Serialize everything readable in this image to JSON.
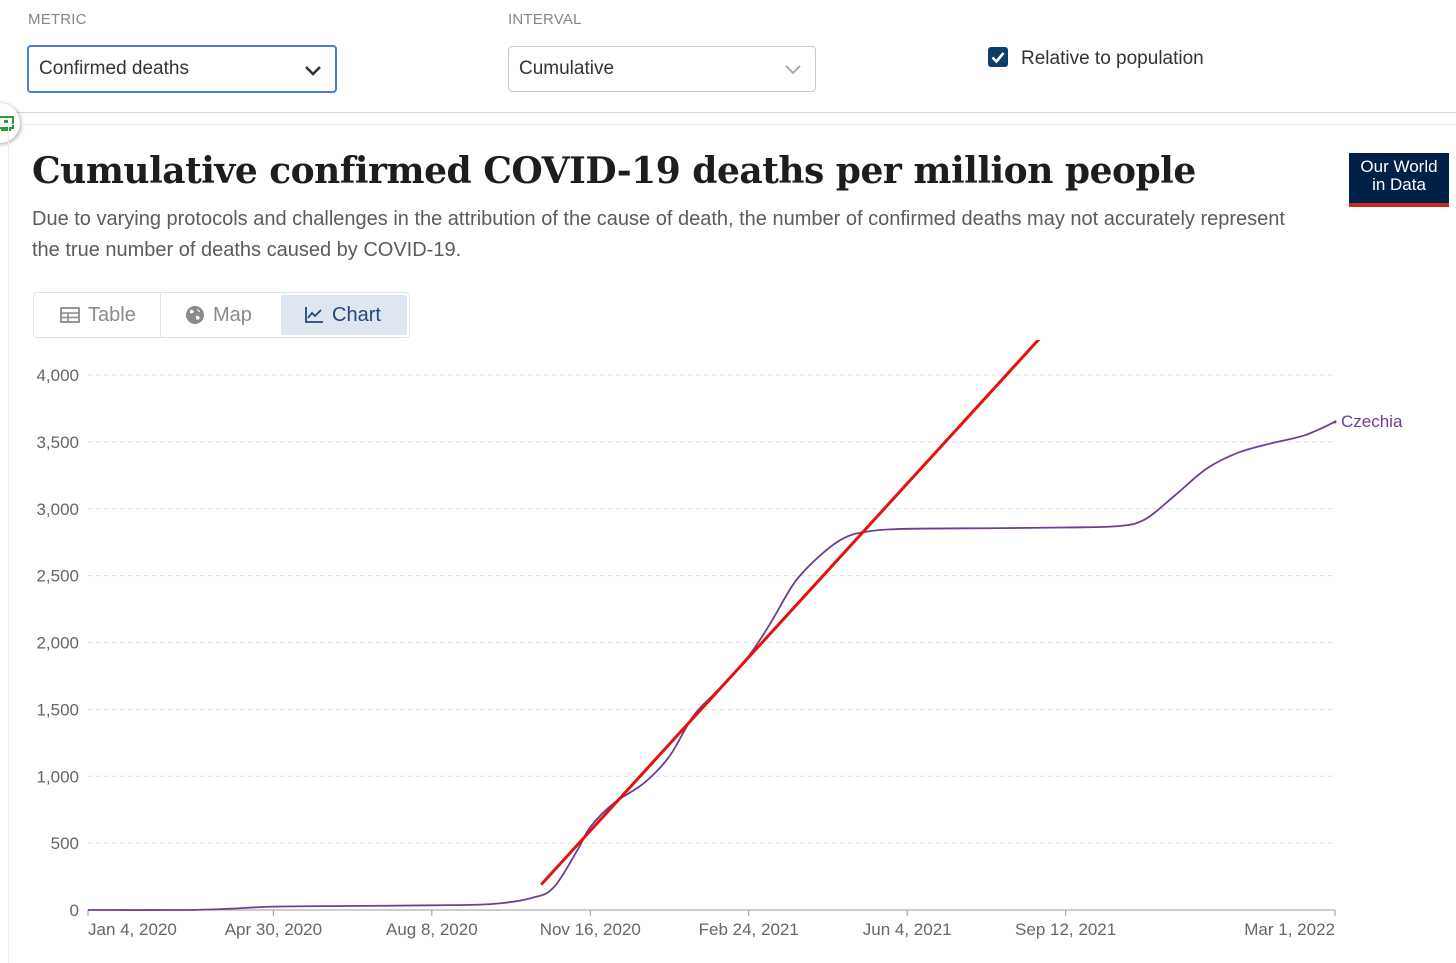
{
  "controls": {
    "metric": {
      "label": "METRIC",
      "value": "Confirmed deaths"
    },
    "interval": {
      "label": "INTERVAL",
      "value": "Cumulative"
    },
    "relative": {
      "label": "Relative to population",
      "checked": true
    }
  },
  "logo": {
    "line1": "Our World",
    "line2": "in Data"
  },
  "tabs": [
    {
      "label": "Table",
      "icon": "table-icon"
    },
    {
      "label": "Map",
      "icon": "globe-icon"
    },
    {
      "label": "Chart",
      "icon": "line-chart-icon",
      "active": true
    }
  ],
  "colors": {
    "series": "#6d3e91",
    "annotation": "#e3120b",
    "accent": "#4f7cd8",
    "brand": "#002147"
  },
  "chart_data": {
    "type": "line",
    "title": "Cumulative confirmed COVID-19 deaths per million people",
    "subtitle": "Due to varying protocols and challenges in the attribution of the cause of death, the number of confirmed deaths may not accurately represent the true number of deaths caused by COVID-19.",
    "ylim": [
      0,
      4000
    ],
    "yticks": [
      0,
      500,
      1000,
      1500,
      2000,
      2500,
      3000,
      3500,
      4000
    ],
    "ytick_labels": [
      "0",
      "500",
      "1,000",
      "1,500",
      "2,000",
      "2,500",
      "3,000",
      "3,500",
      "4,000"
    ],
    "xlim": [
      "2020-01-04",
      "2022-03-01"
    ],
    "xticks": [
      "2020-01-04",
      "2020-04-30",
      "2020-08-08",
      "2020-11-16",
      "2021-02-24",
      "2021-06-04",
      "2021-09-12",
      "2022-03-01"
    ],
    "xtick_labels": [
      "Jan 4, 2020",
      "Apr 30, 2020",
      "Aug 8, 2020",
      "Nov 16, 2020",
      "Feb 24, 2021",
      "Jun 4, 2021",
      "Sep 12, 2021",
      "Mar 1, 2022"
    ],
    "grid": true,
    "series": [
      {
        "name": "Czechia",
        "x": [
          "2020-01-04",
          "2020-03-15",
          "2020-04-30",
          "2020-06-15",
          "2020-08-08",
          "2020-09-15",
          "2020-10-10",
          "2020-10-24",
          "2020-11-08",
          "2020-11-16",
          "2020-12-01",
          "2020-12-20",
          "2021-01-05",
          "2021-01-20",
          "2021-02-05",
          "2021-02-24",
          "2021-03-10",
          "2021-03-25",
          "2021-04-10",
          "2021-04-25",
          "2021-05-10",
          "2021-06-04",
          "2021-08-01",
          "2021-09-12",
          "2021-10-15",
          "2021-11-01",
          "2021-11-20",
          "2021-12-10",
          "2021-12-30",
          "2022-01-20",
          "2022-02-10",
          "2022-03-01"
        ],
        "y": [
          0,
          2,
          25,
          30,
          35,
          45,
          90,
          170,
          450,
          620,
          800,
          950,
          1150,
          1450,
          1650,
          1900,
          2150,
          2450,
          2650,
          2780,
          2830,
          2850,
          2855,
          2860,
          2870,
          2920,
          3100,
          3300,
          3420,
          3490,
          3550,
          3650
        ]
      }
    ],
    "annotations": [
      {
        "type": "trend-line",
        "x": [
          "2020-10-16",
          "2021-09-10"
        ],
        "y": [
          190,
          4460
        ]
      }
    ]
  }
}
